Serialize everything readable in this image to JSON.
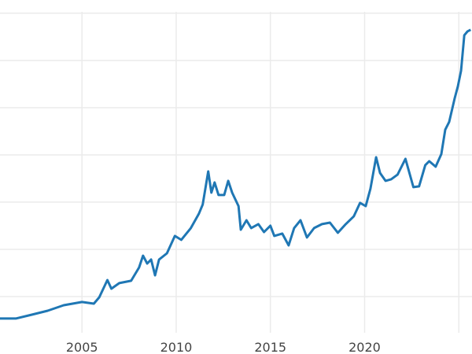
{
  "chart_data": {
    "type": "line",
    "title": "",
    "xlabel": "",
    "ylabel": "",
    "xlim": [
      2000.65,
      2025.7
    ],
    "ylim": [
      0,
      3640
    ],
    "grid": true,
    "x_ticks": [
      2005,
      2010,
      2015,
      2020,
      2025
    ],
    "x_tick_labels": [
      "2005",
      "2010",
      "2015",
      "2020",
      ""
    ],
    "y_gridlines": [
      500,
      1000,
      1500,
      2000,
      2500,
      3000,
      3500
    ],
    "line_color": "#1f77b4",
    "grid_color": "#ebebeb",
    "series": [
      {
        "x": [
          2000.65,
          2001.49,
          2002.34,
          2003.18,
          2004.03,
          2005.0,
          2005.63,
          2005.92,
          2006.35,
          2006.56,
          2006.98,
          2007.61,
          2008.03,
          2008.24,
          2008.46,
          2008.67,
          2008.88,
          2009.09,
          2009.51,
          2009.93,
          2010.27,
          2010.78,
          2011.2,
          2011.41,
          2011.7,
          2011.87,
          2012.04,
          2012.25,
          2012.55,
          2012.76,
          2012.97,
          2013.31,
          2013.43,
          2013.73,
          2013.98,
          2014.36,
          2014.66,
          2015.0,
          2015.21,
          2015.63,
          2015.97,
          2016.26,
          2016.6,
          2016.94,
          2017.32,
          2017.74,
          2018.16,
          2018.58,
          2019.0,
          2019.43,
          2019.76,
          2020.06,
          2020.31,
          2020.61,
          2020.82,
          2021.11,
          2021.41,
          2021.75,
          2022.17,
          2022.59,
          2022.89,
          2023.22,
          2023.43,
          2023.77,
          2024.07,
          2024.28,
          2024.49,
          2024.78,
          2024.95,
          2025.12,
          2025.29,
          2025.46,
          2025.63
        ],
        "y": [
          267,
          267,
          308,
          350,
          408,
          442,
          425,
          492,
          675,
          583,
          642,
          667,
          808,
          933,
          850,
          892,
          725,
          892,
          958,
          1142,
          1100,
          1225,
          1375,
          1475,
          1825,
          1600,
          1708,
          1575,
          1575,
          1725,
          1600,
          1458,
          1208,
          1308,
          1225,
          1267,
          1183,
          1250,
          1142,
          1167,
          1042,
          1225,
          1308,
          1125,
          1225,
          1267,
          1283,
          1175,
          1267,
          1350,
          1492,
          1458,
          1642,
          1975,
          1808,
          1725,
          1742,
          1792,
          1958,
          1658,
          1667,
          1892,
          1933,
          1875,
          2008,
          2267,
          2350,
          2600,
          2725,
          2892,
          3267,
          3308,
          3325
        ]
      }
    ]
  }
}
